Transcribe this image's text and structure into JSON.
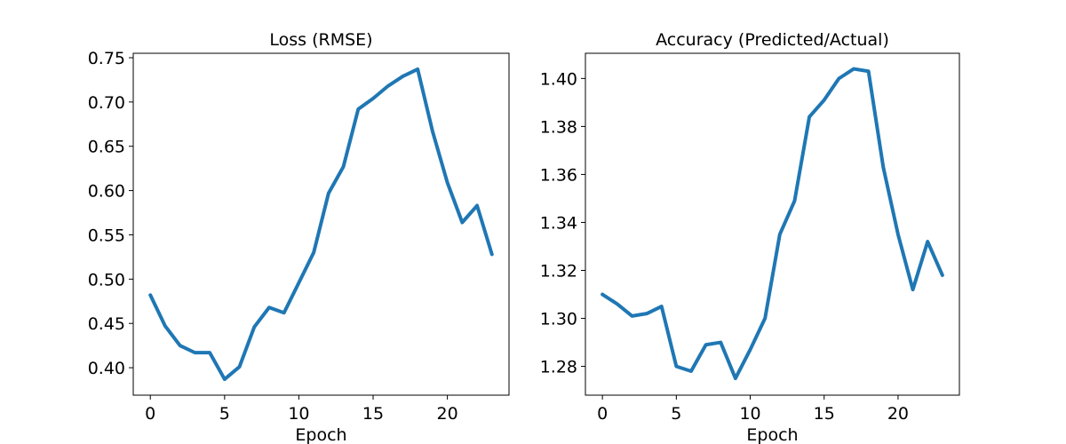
{
  "chart_data": [
    {
      "type": "line",
      "title": "Loss (RMSE)",
      "xlabel": "Epoch",
      "ylabel": "",
      "xlim": [
        -1.15,
        24.15
      ],
      "ylim": [
        0.369,
        0.755
      ],
      "xticks": [
        0,
        5,
        10,
        15,
        20
      ],
      "xtick_labels": [
        "0",
        "5",
        "10",
        "15",
        "20"
      ],
      "yticks": [
        0.4,
        0.45,
        0.5,
        0.55,
        0.6,
        0.65,
        0.7,
        0.75
      ],
      "ytick_labels": [
        "0.40",
        "0.45",
        "0.50",
        "0.55",
        "0.60",
        "0.65",
        "0.70",
        "0.75"
      ],
      "grid": false,
      "series": [
        {
          "color": "#1f77b4",
          "x": [
            0,
            1,
            2,
            3,
            4,
            5,
            6,
            7,
            8,
            9,
            10,
            11,
            12,
            13,
            14,
            15,
            16,
            17,
            18,
            19,
            20,
            21,
            22,
            23
          ],
          "y": [
            0.482,
            0.447,
            0.425,
            0.417,
            0.417,
            0.387,
            0.401,
            0.446,
            0.468,
            0.462,
            0.496,
            0.53,
            0.597,
            0.627,
            0.692,
            0.704,
            0.718,
            0.729,
            0.737,
            0.667,
            0.609,
            0.564,
            0.583,
            0.528
          ]
        }
      ]
    },
    {
      "type": "line",
      "title": "Accuracy (Predicted/Actual)",
      "xlabel": "Epoch",
      "ylabel": "",
      "xlim": [
        -1.15,
        24.15
      ],
      "ylim": [
        1.268,
        1.4105
      ],
      "xticks": [
        0,
        5,
        10,
        15,
        20
      ],
      "xtick_labels": [
        "0",
        "5",
        "10",
        "15",
        "20"
      ],
      "yticks": [
        1.28,
        1.3,
        1.32,
        1.34,
        1.36,
        1.38,
        1.4
      ],
      "ytick_labels": [
        "1.28",
        "1.30",
        "1.32",
        "1.34",
        "1.36",
        "1.38",
        "1.40"
      ],
      "grid": false,
      "series": [
        {
          "color": "#1f77b4",
          "x": [
            0,
            1,
            2,
            3,
            4,
            5,
            6,
            7,
            8,
            9,
            10,
            11,
            12,
            13,
            14,
            15,
            16,
            17,
            18,
            19,
            20,
            21,
            22,
            23
          ],
          "y": [
            1.31,
            1.306,
            1.301,
            1.302,
            1.305,
            1.28,
            1.278,
            1.289,
            1.29,
            1.275,
            1.287,
            1.3,
            1.335,
            1.349,
            1.384,
            1.391,
            1.4,
            1.404,
            1.403,
            1.363,
            1.335,
            1.312,
            1.332,
            1.318
          ]
        }
      ]
    }
  ]
}
